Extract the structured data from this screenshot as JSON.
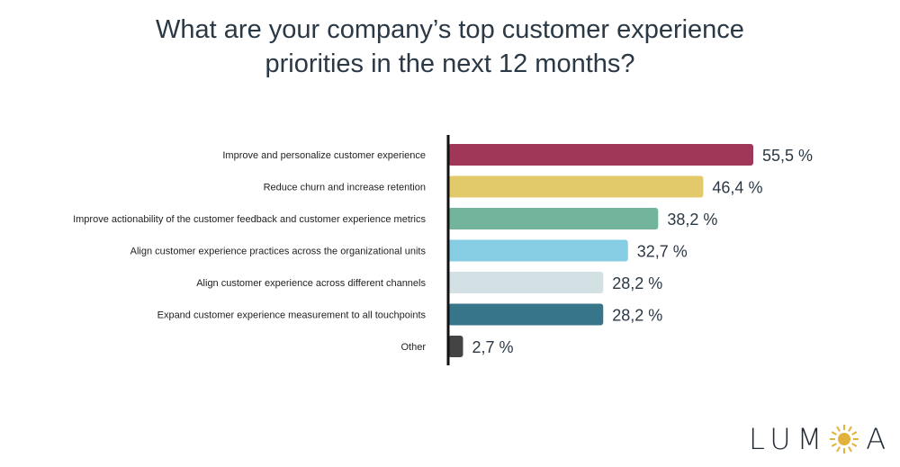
{
  "title_line1": "What are your company’s top customer experience",
  "title_line2": "priorities in the next 12 months?",
  "chart_data": {
    "type": "bar",
    "orientation": "horizontal",
    "title": "What are your company’s top customer experience priorities in the next 12 months?",
    "unit": "%",
    "xlim": [
      0,
      60
    ],
    "grid": false,
    "categories": [
      "Improve and personalize customer experience",
      "Reduce churn and increase retention",
      "Improve actionability of the customer feedback and customer experience metrics",
      "Align customer experience practices across the organizational units",
      "Align customer experience across different channels",
      "Expand customer experience measurement to all touchpoints",
      "Other"
    ],
    "values": [
      55.5,
      46.4,
      38.2,
      32.7,
      28.2,
      28.2,
      2.7
    ],
    "value_labels": [
      "55,5 %",
      "46,4 %",
      "38,2 %",
      "32,7 %",
      "28,2 %",
      "28,2 %",
      "2,7 %"
    ],
    "colors": [
      "#9e3758",
      "#e2c96a",
      "#72b59c",
      "#86cde3",
      "#d3e0e4",
      "#37758a",
      "#444444"
    ]
  },
  "logo": {
    "left": "LUM",
    "right": "A"
  }
}
